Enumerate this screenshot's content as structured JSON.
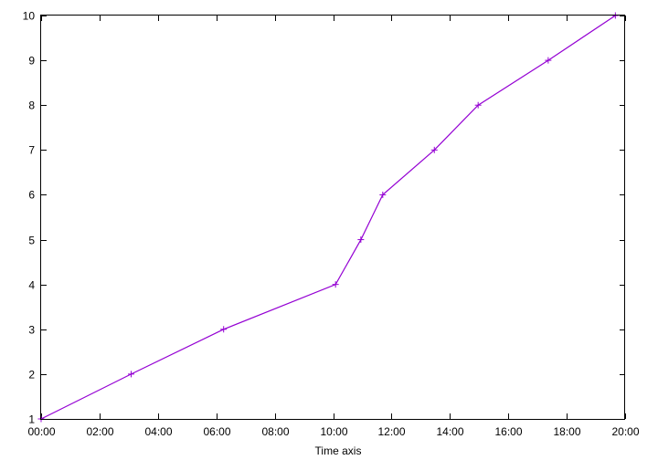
{
  "chart_data": {
    "type": "line",
    "title": "",
    "xlabel": "Time axis",
    "ylabel": "",
    "grid": false,
    "legend": "none",
    "x_ticks": [
      "00:00",
      "02:00",
      "04:00",
      "06:00",
      "08:00",
      "10:00",
      "12:00",
      "14:00",
      "16:00",
      "18:00",
      "20:00"
    ],
    "y_ticks": [
      "1",
      "2",
      "3",
      "4",
      "5",
      "6",
      "7",
      "8",
      "9",
      "10"
    ],
    "xlim": [
      "00:00",
      "20:00"
    ],
    "ylim": [
      1,
      10
    ],
    "series": [
      {
        "marker": "plus",
        "color": "#9400d3",
        "points": [
          {
            "x": "00:00",
            "y": 1
          },
          {
            "x": "03:05",
            "y": 2
          },
          {
            "x": "06:15",
            "y": 3
          },
          {
            "x": "10:05",
            "y": 4
          },
          {
            "x": "10:57",
            "y": 5
          },
          {
            "x": "11:42",
            "y": 6
          },
          {
            "x": "13:28",
            "y": 7
          },
          {
            "x": "14:58",
            "y": 8
          },
          {
            "x": "17:22",
            "y": 9
          },
          {
            "x": "19:40",
            "y": 10
          }
        ]
      }
    ]
  }
}
